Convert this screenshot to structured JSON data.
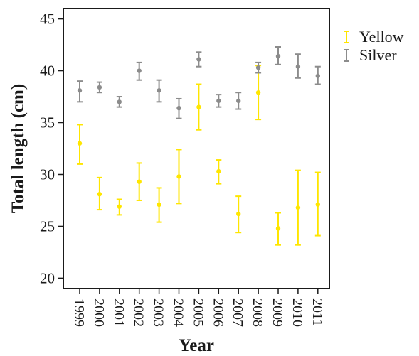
{
  "chart_data": {
    "type": "scatter",
    "title": "",
    "xlabel": "Year",
    "ylabel": "Total length (cm)",
    "categories": [
      "1999",
      "2000",
      "2001",
      "2002",
      "2003",
      "2004",
      "2005",
      "2006",
      "2007",
      "2008",
      "2009",
      "2010",
      "2011"
    ],
    "ylim": [
      19,
      46
    ],
    "yticks": [
      20,
      25,
      30,
      35,
      40,
      45
    ],
    "legend_position": "top-right, outside plot",
    "grid": false,
    "series": [
      {
        "name": "Yellow",
        "color": "#ffe600",
        "values": [
          33.0,
          28.1,
          26.9,
          29.3,
          27.1,
          29.8,
          36.5,
          30.3,
          26.2,
          37.9,
          24.8,
          26.8,
          27.1
        ],
        "lower": [
          31.0,
          26.6,
          26.1,
          27.5,
          25.4,
          27.2,
          34.3,
          29.1,
          24.4,
          35.3,
          23.2,
          23.2,
          24.1
        ],
        "upper": [
          34.8,
          29.7,
          27.6,
          31.1,
          28.7,
          32.4,
          38.7,
          31.4,
          27.9,
          40.5,
          26.3,
          30.4,
          30.2
        ]
      },
      {
        "name": "Silver",
        "color": "#8c8c8c",
        "values": [
          38.1,
          38.4,
          37.0,
          40.0,
          38.1,
          36.4,
          41.1,
          37.1,
          37.1,
          40.3,
          41.4,
          40.4,
          39.5
        ],
        "lower": [
          37.0,
          37.9,
          36.5,
          39.1,
          37.0,
          35.4,
          40.4,
          36.5,
          36.3,
          39.8,
          40.6,
          39.3,
          38.7
        ],
        "upper": [
          39.0,
          38.9,
          37.5,
          40.8,
          39.1,
          37.3,
          41.8,
          37.7,
          37.9,
          40.8,
          42.3,
          41.6,
          40.4
        ]
      }
    ]
  }
}
